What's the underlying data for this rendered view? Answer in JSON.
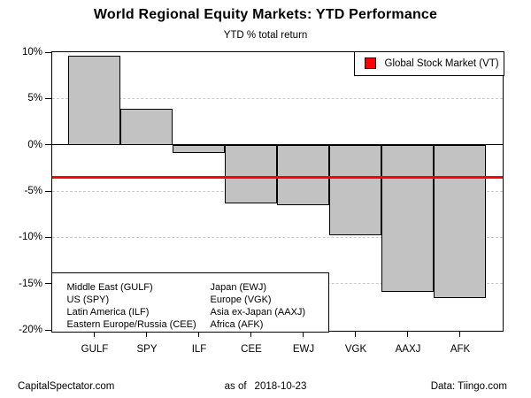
{
  "title": "World Regional Equity Markets: YTD Performance",
  "subtitle": "YTD % total return",
  "legend": {
    "label": "Global Stock Market (VT)",
    "swatch_color": "#ff0000"
  },
  "etf_key": {
    "col1": [
      "Middle East (GULF)",
      "US (SPY)",
      "Latin America (ILF)",
      "Eastern Europe/Russia (CEE)"
    ],
    "col2": [
      "Japan (EWJ)",
      "Europe (VGK)",
      "Asia ex-Japan (AAXJ)",
      "Africa (AFK)"
    ]
  },
  "footer": {
    "site": "CapitalSpectator.com",
    "as_of_label": "as of",
    "as_of_date": "2018-10-23",
    "data_source": "Data: Tiingo.com"
  },
  "chart_data": {
    "type": "bar",
    "title": "World Regional Equity Markets: YTD Performance",
    "subtitle": "YTD % total return",
    "categories": [
      "GULF",
      "SPY",
      "ILF",
      "CEE",
      "EWJ",
      "VGK",
      "AAXJ",
      "AFK"
    ],
    "values": [
      9.6,
      3.9,
      -0.9,
      -6.3,
      -6.5,
      -9.8,
      -15.9,
      -16.6
    ],
    "units": "percent YTD total return",
    "xlabel": "",
    "ylabel": "",
    "ylim": [
      -20,
      10
    ],
    "yticks": [
      10,
      5,
      0,
      -5,
      -10,
      -15,
      -20
    ],
    "ytick_labels": [
      "10%",
      "5%",
      "0%",
      "-5%",
      "-10%",
      "-15%",
      "-20%"
    ],
    "gridlines_at": [
      5,
      -5,
      -10,
      -15
    ],
    "grid_style": "dashed-horizontal",
    "zero_line": true,
    "legend_position": "top-right",
    "reference_line": {
      "label": "Global Stock Market (VT)",
      "value": -3.5,
      "color": "#ff0000"
    },
    "bar_fill": "#c2c2c2",
    "bar_border": "#000000"
  }
}
